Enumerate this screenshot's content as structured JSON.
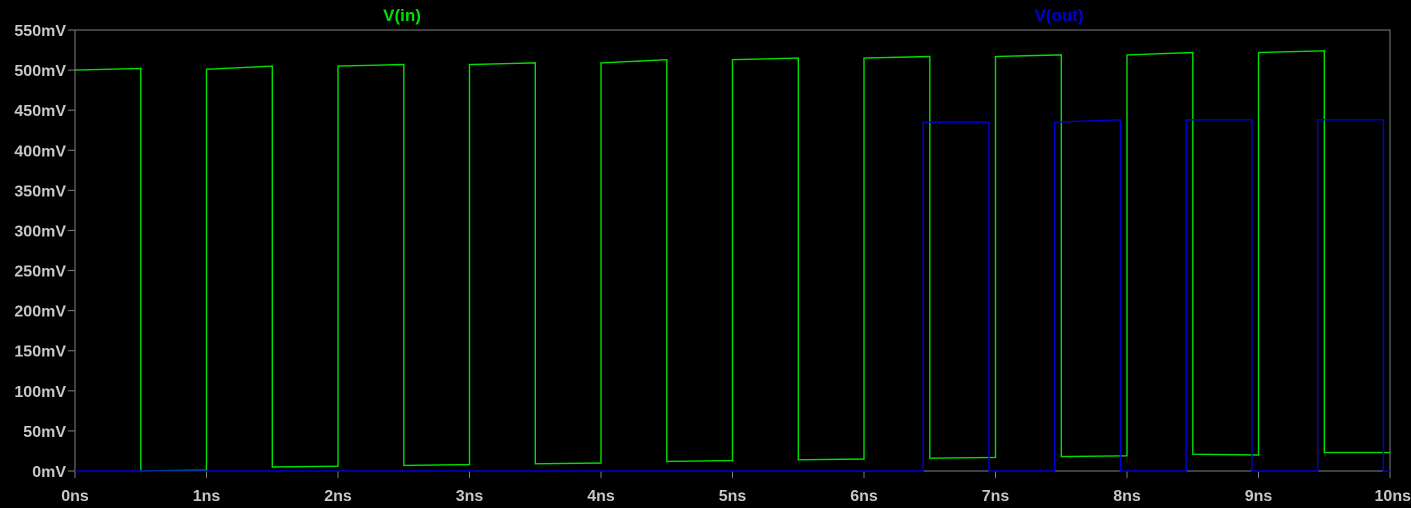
{
  "chart_data": {
    "type": "line",
    "title": "",
    "xlabel": "",
    "ylabel": "",
    "xlim": [
      0,
      10
    ],
    "ylim": [
      0,
      550
    ],
    "x_unit": "ns",
    "y_unit": "mV",
    "background": "#000000",
    "axis_color": "#808080",
    "tick_label_color": "#c8c8c8",
    "grid": false,
    "x_ticks": [
      0,
      1,
      2,
      3,
      4,
      5,
      6,
      7,
      8,
      9,
      10
    ],
    "x_tick_labels": [
      "0ns",
      "1ns",
      "2ns",
      "3ns",
      "4ns",
      "5ns",
      "6ns",
      "7ns",
      "8ns",
      "9ns",
      "10ns"
    ],
    "y_ticks": [
      0,
      50,
      100,
      150,
      200,
      250,
      300,
      350,
      400,
      450,
      500,
      550
    ],
    "y_tick_labels": [
      "0mV",
      "50mV",
      "100mV",
      "150mV",
      "200mV",
      "250mV",
      "300mV",
      "350mV",
      "400mV",
      "450mV",
      "500mV",
      "550mV"
    ],
    "series": [
      {
        "name": "V(in)",
        "color": "#00e000",
        "x": [
          0,
          0.5,
          0.5,
          1.0,
          1.0,
          1.5,
          1.5,
          2.0,
          2.0,
          2.5,
          2.5,
          3.0,
          3.0,
          3.5,
          3.5,
          4.0,
          4.0,
          4.5,
          4.5,
          5.0,
          5.0,
          5.5,
          5.5,
          6.0,
          6.0,
          6.5,
          6.5,
          7.0,
          7.0,
          7.5,
          7.5,
          8.0,
          8.0,
          8.5,
          8.5,
          9.0,
          9.0,
          9.5,
          9.5,
          10.0
        ],
        "y": [
          500,
          502,
          0,
          1,
          501,
          505,
          5,
          6,
          505,
          507,
          7,
          8,
          507,
          509,
          9,
          10,
          509,
          513,
          12,
          13,
          513,
          515,
          14,
          15,
          515,
          517,
          16,
          17,
          517,
          519,
          18,
          19,
          519,
          522,
          21,
          20,
          522,
          524,
          23,
          23
        ]
      },
      {
        "name": "V(out)",
        "color": "#0000d8",
        "x": [
          0,
          6.45,
          6.45,
          6.95,
          6.95,
          7.45,
          7.45,
          7.95,
          7.95,
          8.45,
          8.45,
          8.95,
          8.95,
          9.45,
          9.45,
          9.95,
          9.95,
          10.0
        ],
        "y": [
          0,
          0,
          435,
          435,
          0,
          0,
          435,
          438,
          0,
          0,
          438,
          438,
          0,
          0,
          438,
          438,
          0,
          0
        ]
      }
    ]
  }
}
